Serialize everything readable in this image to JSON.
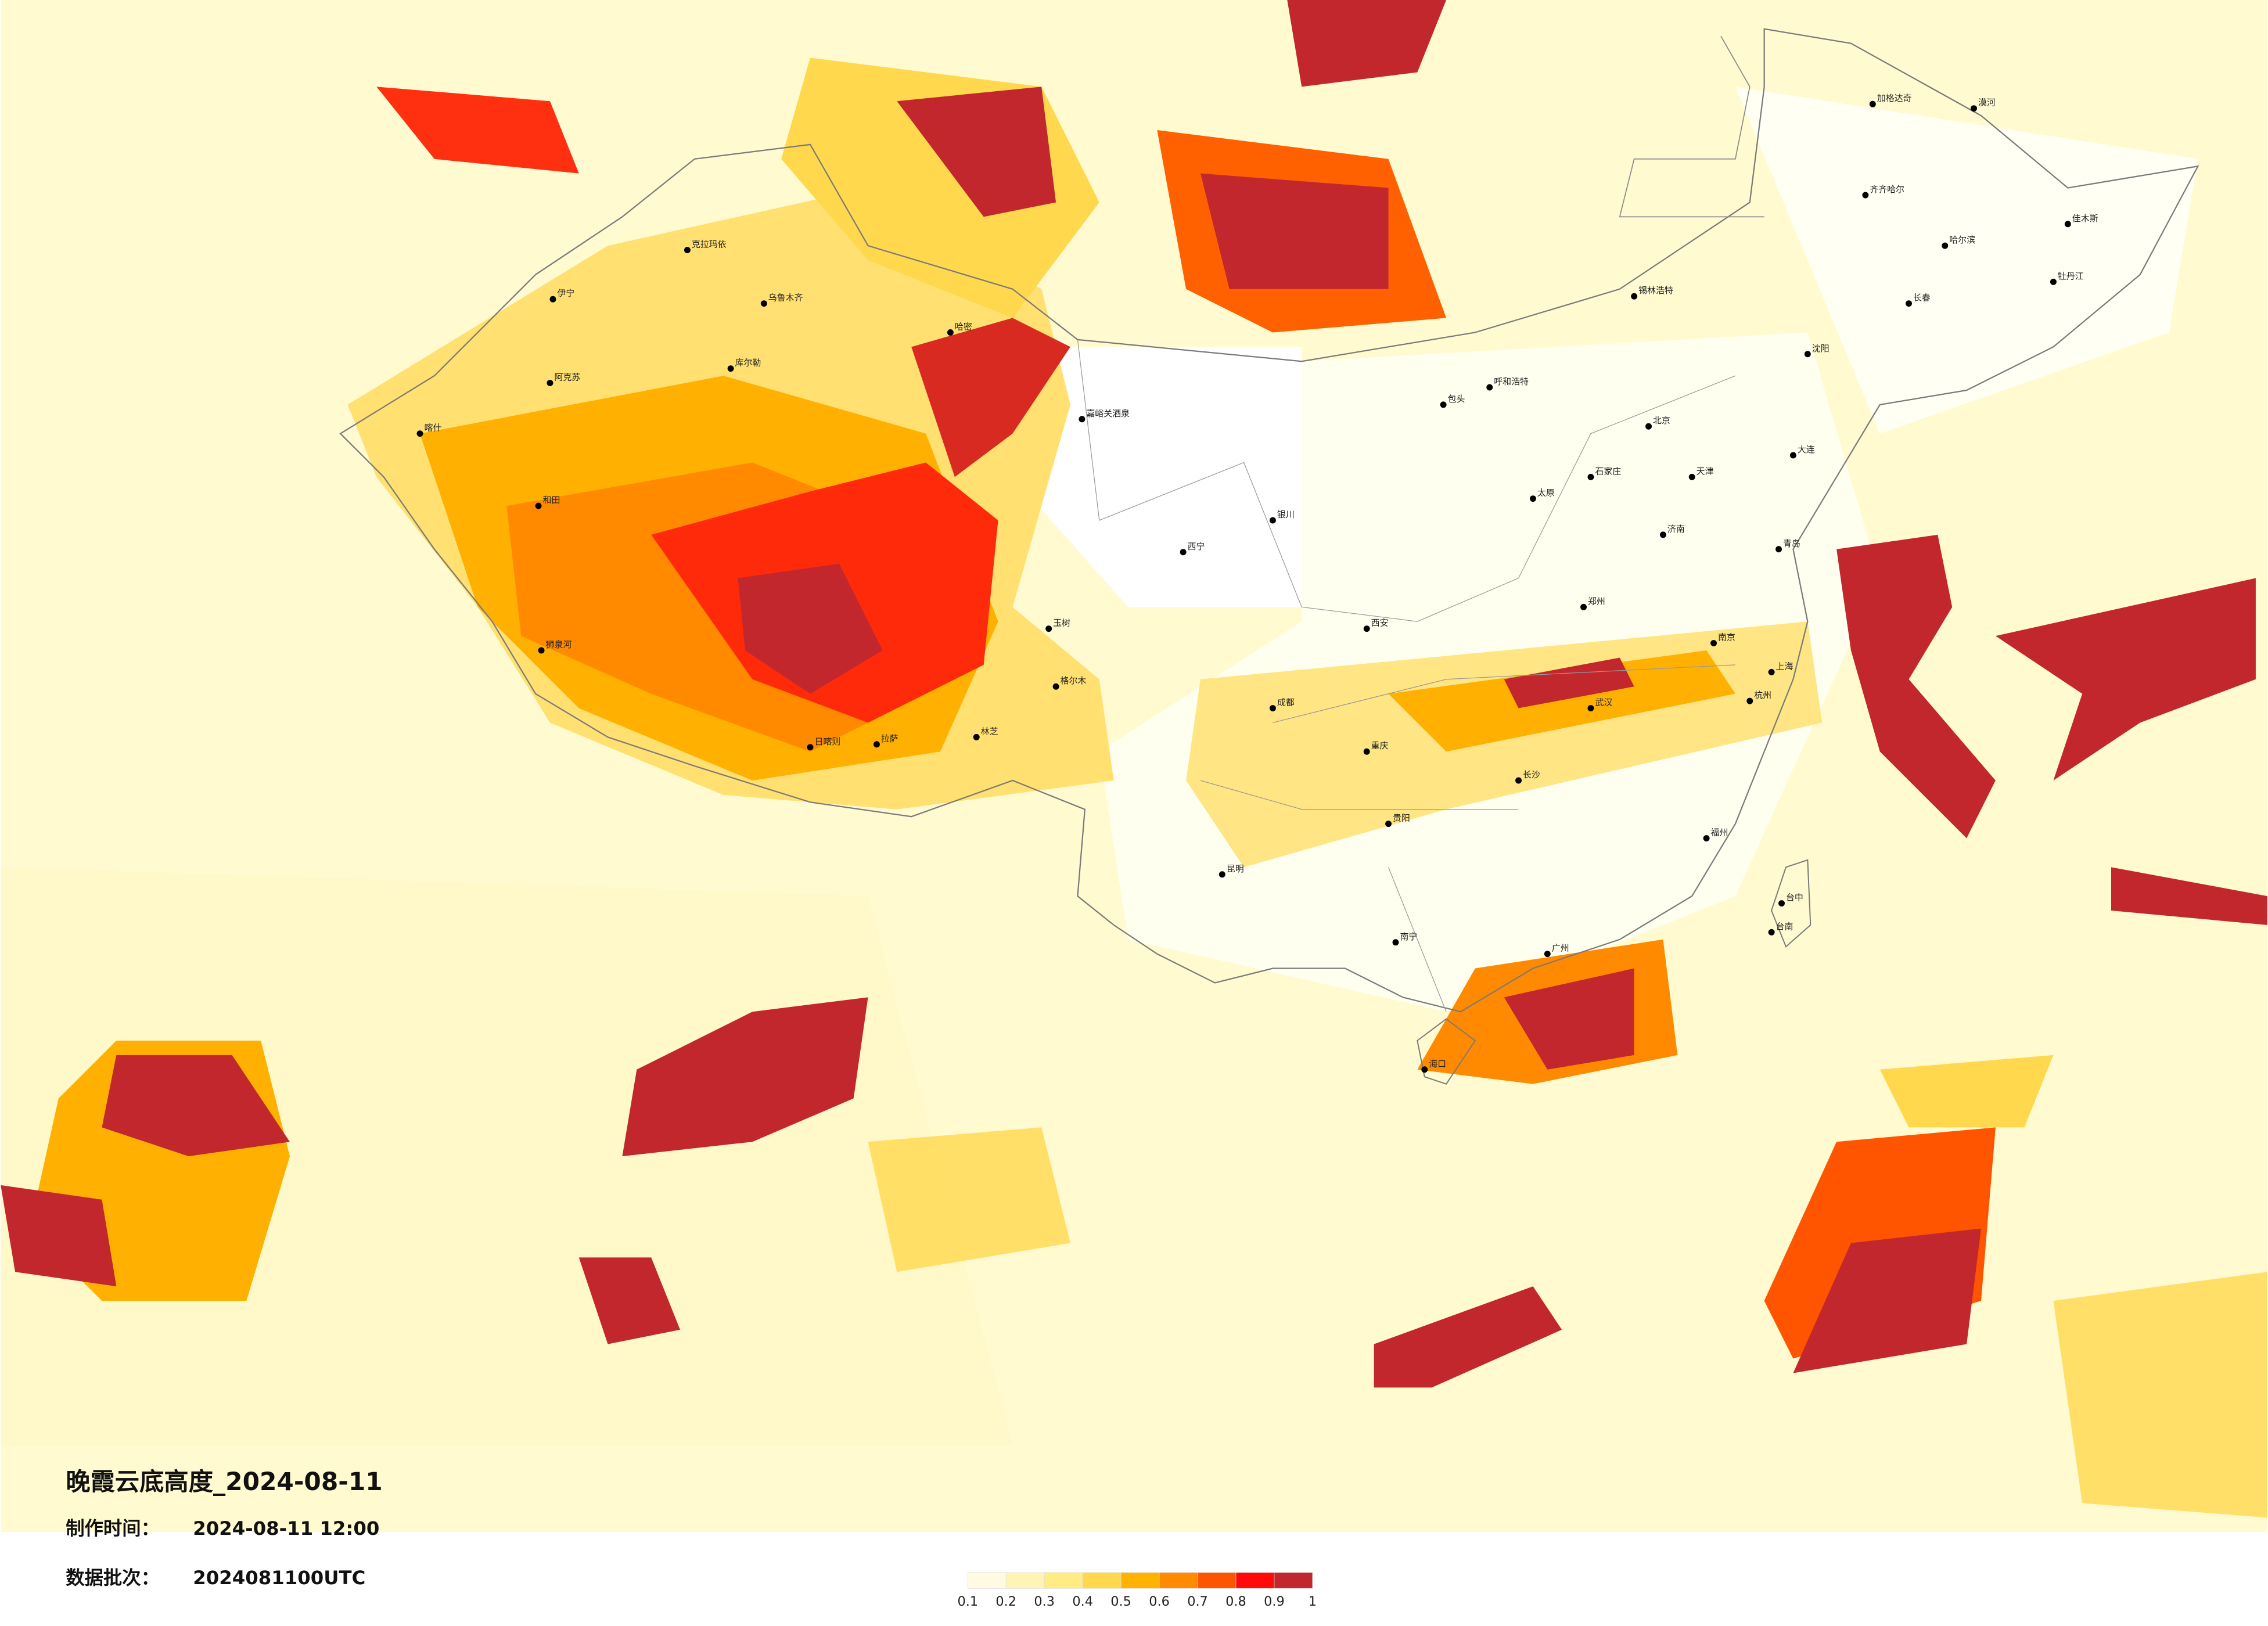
{
  "title": "晚霞云底高度_2024-08-11",
  "made_label": "制作时间：",
  "made_time": "2024-08-11 12:00",
  "batch_label": "数据批次：",
  "batch": "2024081100UTC",
  "legend": {
    "ticks": [
      0.1,
      0.2,
      0.3,
      0.4,
      0.5,
      0.6,
      0.7,
      0.8,
      0.9,
      1
    ],
    "colors": [
      "#fffbe3",
      "#fff4b5",
      "#ffec82",
      "#ffd84e",
      "#ffb300",
      "#ff8a00",
      "#ff5400",
      "#ff0a0a",
      "#c1272d"
    ]
  },
  "cities": [
    "克拉玛依",
    "伊宁",
    "乌鲁木齐",
    "哈密",
    "阿克苏",
    "库尔勒",
    "喀什",
    "和田",
    "狮泉河",
    "日喀则",
    "拉萨",
    "林芝",
    "格尔木",
    "玉树",
    "西宁",
    "嘉峪关酒泉",
    "银川",
    "呼和浩特",
    "包头",
    "北京",
    "天津",
    "石家庄",
    "太原",
    "郑州",
    "西安",
    "成都",
    "重庆",
    "贵阳",
    "昆明",
    "南宁",
    "广州",
    "海口",
    "长沙",
    "武汉",
    "南京",
    "上海",
    "杭州",
    "福州",
    "台中",
    "台南",
    "沈阳",
    "长春",
    "哈尔滨",
    "齐齐哈尔",
    "漠河",
    "加格达奇",
    "佳木斯",
    "牡丹江",
    "济南",
    "青岛",
    "大连",
    "锡林浩特"
  ]
}
